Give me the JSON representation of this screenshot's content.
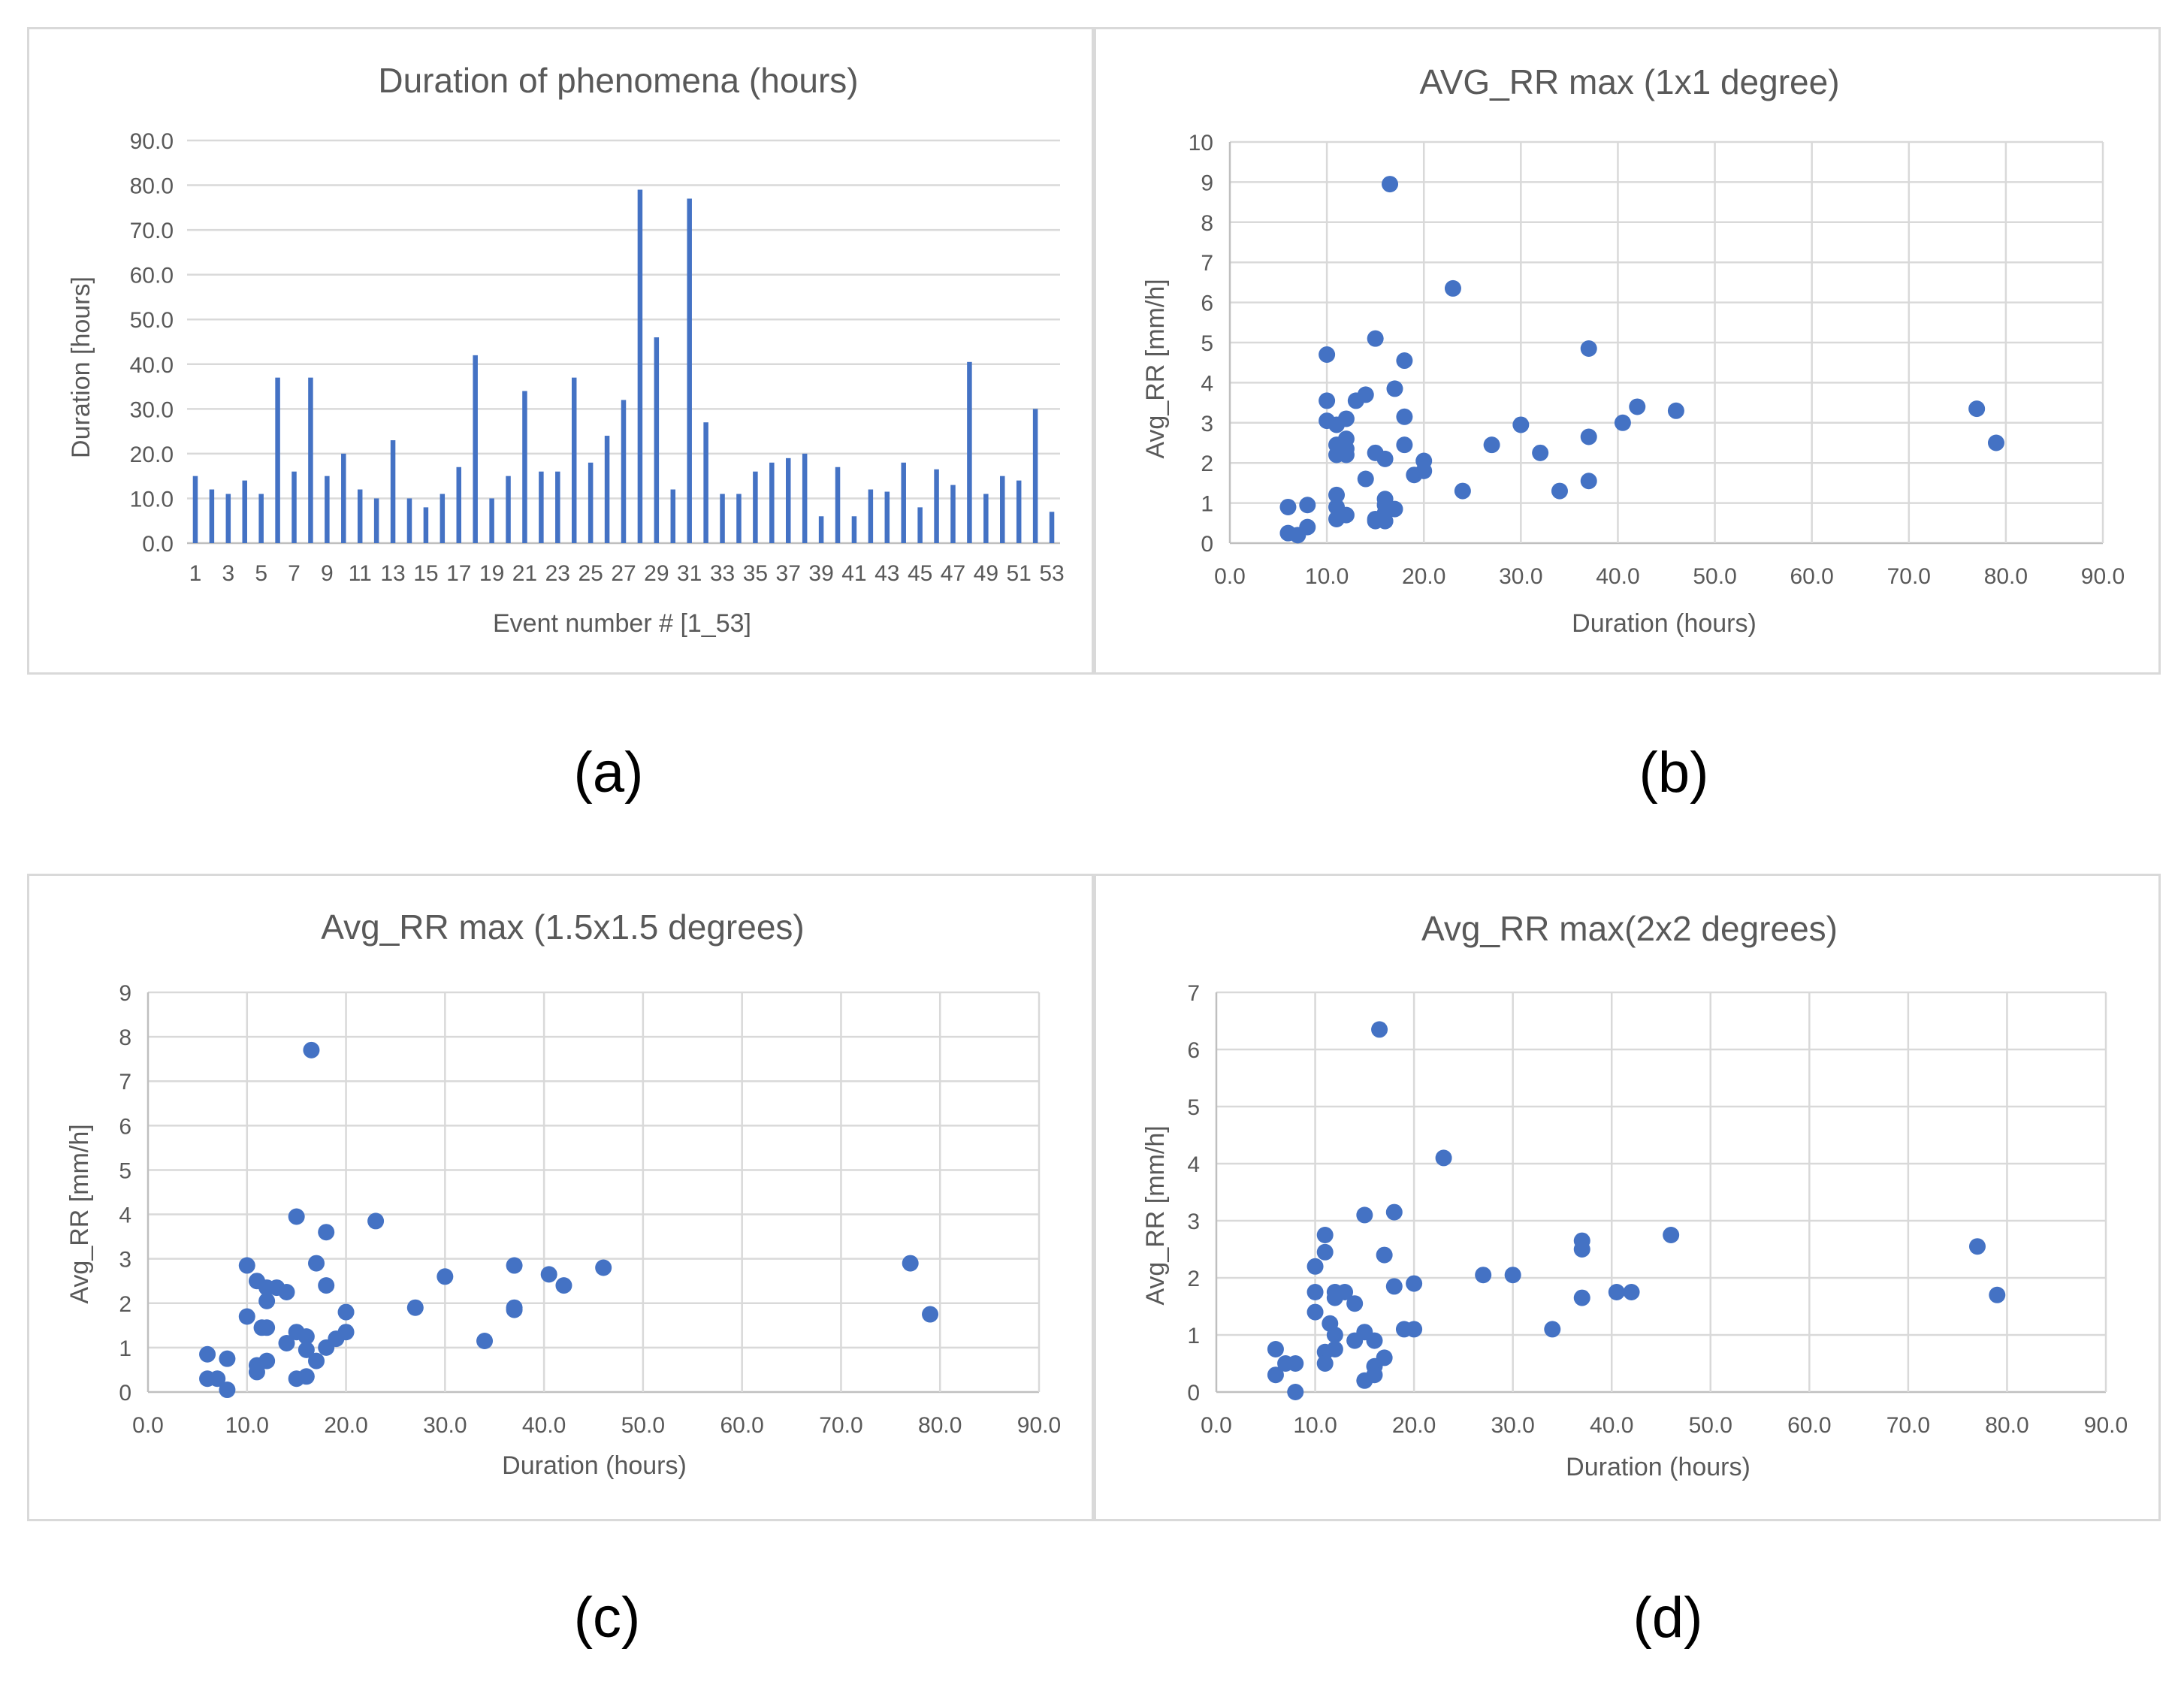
{
  "colors": {
    "series": "#4472c4",
    "grid": "#d9d9d9",
    "text": "#595959"
  },
  "captions": [
    "(a)",
    "(b)",
    "(c)",
    "(d)"
  ],
  "chart_data": [
    {
      "id": "a",
      "type": "bar",
      "title": "Duration of phenomena  (hours)",
      "xlabel": "Event number # [1_53]",
      "ylabel": "Duration [hours]",
      "ylim": [
        0,
        90
      ],
      "ystep": 10,
      "ytick_labels": [
        "0.0",
        "10.0",
        "20.0",
        "30.0",
        "40.0",
        "50.0",
        "60.0",
        "70.0",
        "80.0",
        "90.0"
      ],
      "categories": [
        1,
        2,
        3,
        4,
        5,
        6,
        7,
        8,
        9,
        10,
        11,
        12,
        13,
        14,
        15,
        16,
        17,
        18,
        19,
        20,
        21,
        22,
        23,
        24,
        25,
        26,
        27,
        28,
        29,
        30,
        31,
        32,
        33,
        34,
        35,
        36,
        37,
        38,
        39,
        40,
        41,
        42,
        43,
        44,
        45,
        46,
        47,
        48,
        49,
        50,
        51,
        52,
        53
      ],
      "xtick_labels": [
        "1",
        "3",
        "5",
        "7",
        "9",
        "11",
        "13",
        "15",
        "17",
        "19",
        "21",
        "23",
        "25",
        "27",
        "29",
        "31",
        "33",
        "35",
        "37",
        "39",
        "41",
        "43",
        "45",
        "47",
        "49",
        "51",
        "53"
      ],
      "values": [
        15,
        12,
        11,
        14,
        11,
        37,
        16,
        37,
        15,
        20,
        12,
        10,
        23,
        10,
        8,
        11,
        17,
        42,
        10,
        15,
        34,
        16,
        16,
        37,
        18,
        24,
        32,
        79,
        46,
        12,
        77,
        27,
        11,
        11,
        16,
        18,
        19,
        20,
        6,
        17,
        6,
        12,
        11.5,
        18,
        8,
        16.5,
        13,
        40.5,
        11,
        15,
        14,
        30,
        7
      ]
    },
    {
      "id": "b",
      "type": "scatter",
      "title": "AVG_RR max (1x1 degree)",
      "xlabel": "Duration (hours)",
      "ylabel": "Avg_RR [mm/h]",
      "xlim": [
        0,
        90
      ],
      "xstep": 10,
      "xtick_labels": [
        "0.0",
        "10.0",
        "20.0",
        "30.0",
        "40.0",
        "50.0",
        "60.0",
        "70.0",
        "80.0",
        "90.0"
      ],
      "ylim": [
        0,
        10
      ],
      "ystep": 1,
      "ytick_labels": [
        "0",
        "1",
        "2",
        "3",
        "4",
        "5",
        "6",
        "7",
        "8",
        "9",
        "10"
      ],
      "points": [
        [
          6,
          0.9
        ],
        [
          6,
          0.25
        ],
        [
          7,
          0.2
        ],
        [
          8,
          0.4
        ],
        [
          8,
          0.95
        ],
        [
          10,
          4.7
        ],
        [
          10,
          3.55
        ],
        [
          10,
          3.05
        ],
        [
          11,
          2.95
        ],
        [
          11,
          2.45
        ],
        [
          11,
          2.2
        ],
        [
          11,
          1.2
        ],
        [
          11,
          0.9
        ],
        [
          11,
          0.6
        ],
        [
          12,
          3.1
        ],
        [
          12,
          2.6
        ],
        [
          12,
          2.35
        ],
        [
          12,
          2.2
        ],
        [
          12,
          0.7
        ],
        [
          13,
          3.55
        ],
        [
          14,
          3.7
        ],
        [
          14,
          1.6
        ],
        [
          15,
          5.1
        ],
        [
          15,
          2.25
        ],
        [
          15,
          0.6
        ],
        [
          15,
          0.55
        ],
        [
          16,
          2.1
        ],
        [
          16,
          1.1
        ],
        [
          16,
          0.95
        ],
        [
          16,
          0.75
        ],
        [
          16,
          0.55
        ],
        [
          16.5,
          8.95
        ],
        [
          17,
          3.85
        ],
        [
          17,
          0.85
        ],
        [
          18,
          4.55
        ],
        [
          18,
          3.15
        ],
        [
          18,
          2.45
        ],
        [
          19,
          1.7
        ],
        [
          20,
          2.05
        ],
        [
          20,
          1.8
        ],
        [
          23,
          6.35
        ],
        [
          24,
          1.3
        ],
        [
          27,
          2.45
        ],
        [
          30,
          2.95
        ],
        [
          32,
          2.25
        ],
        [
          34,
          1.3
        ],
        [
          37,
          4.85
        ],
        [
          37,
          2.65
        ],
        [
          37,
          1.55
        ],
        [
          40.5,
          3.0
        ],
        [
          42,
          3.4
        ],
        [
          46,
          3.3
        ],
        [
          77,
          3.35
        ],
        [
          79,
          2.5
        ]
      ]
    },
    {
      "id": "c",
      "type": "scatter",
      "title": "Avg_RR max (1.5x1.5 degrees)",
      "xlabel": "Duration (hours)",
      "ylabel": "Avg_RR [mm/h]",
      "xlim": [
        0,
        90
      ],
      "xstep": 10,
      "xtick_labels": [
        "0.0",
        "10.0",
        "20.0",
        "30.0",
        "40.0",
        "50.0",
        "60.0",
        "70.0",
        "80.0",
        "90.0"
      ],
      "ylim": [
        0,
        9
      ],
      "ystep": 1,
      "ytick_labels": [
        "0",
        "1",
        "2",
        "3",
        "4",
        "5",
        "6",
        "7",
        "8",
        "9"
      ],
      "points": [
        [
          6,
          0.85
        ],
        [
          6,
          0.3
        ],
        [
          7,
          0.3
        ],
        [
          8,
          0.75
        ],
        [
          8,
          0.05
        ],
        [
          10,
          2.85
        ],
        [
          10,
          1.7
        ],
        [
          11,
          2.5
        ],
        [
          11,
          0.6
        ],
        [
          11,
          0.45
        ],
        [
          11.5,
          1.45
        ],
        [
          12,
          2.35
        ],
        [
          12,
          2.05
        ],
        [
          12,
          1.45
        ],
        [
          12,
          0.7
        ],
        [
          13,
          2.35
        ],
        [
          14,
          2.25
        ],
        [
          14,
          1.1
        ],
        [
          15,
          3.95
        ],
        [
          15,
          1.35
        ],
        [
          15,
          0.3
        ],
        [
          16,
          1.25
        ],
        [
          16,
          0.95
        ],
        [
          16,
          0.35
        ],
        [
          16.5,
          7.7
        ],
        [
          17,
          2.9
        ],
        [
          17,
          0.7
        ],
        [
          18,
          3.6
        ],
        [
          18,
          2.4
        ],
        [
          18,
          1.0
        ],
        [
          19,
          1.2
        ],
        [
          20,
          1.8
        ],
        [
          20,
          1.35
        ],
        [
          23,
          3.85
        ],
        [
          27,
          1.9
        ],
        [
          30,
          2.6
        ],
        [
          34,
          1.15
        ],
        [
          37,
          2.85
        ],
        [
          37,
          1.9
        ],
        [
          37,
          1.85
        ],
        [
          40.5,
          2.65
        ],
        [
          42,
          2.4
        ],
        [
          46,
          2.8
        ],
        [
          77,
          2.9
        ],
        [
          79,
          1.75
        ]
      ]
    },
    {
      "id": "d",
      "type": "scatter",
      "title": "Avg_RR max(2x2 degrees)",
      "xlabel": "Duration (hours)",
      "ylabel": "Avg_RR [mm/h]",
      "xlim": [
        0,
        90
      ],
      "xstep": 10,
      "xtick_labels": [
        "0.0",
        "10.0",
        "20.0",
        "30.0",
        "40.0",
        "50.0",
        "60.0",
        "70.0",
        "80.0",
        "90.0"
      ],
      "ylim": [
        0,
        7
      ],
      "ystep": 1,
      "ytick_labels": [
        "0",
        "1",
        "2",
        "3",
        "4",
        "5",
        "6",
        "7"
      ],
      "points": [
        [
          6,
          0.75
        ],
        [
          6,
          0.3
        ],
        [
          7,
          0.5
        ],
        [
          8,
          0.5
        ],
        [
          8,
          0.0
        ],
        [
          10,
          2.2
        ],
        [
          10,
          1.75
        ],
        [
          10,
          1.4
        ],
        [
          11,
          2.75
        ],
        [
          11,
          2.45
        ],
        [
          11,
          0.7
        ],
        [
          11,
          0.5
        ],
        [
          11.5,
          1.2
        ],
        [
          12,
          1.75
        ],
        [
          12,
          1.65
        ],
        [
          12,
          1.0
        ],
        [
          12,
          0.75
        ],
        [
          13,
          1.75
        ],
        [
          14,
          1.55
        ],
        [
          14,
          0.9
        ],
        [
          15,
          3.1
        ],
        [
          15,
          1.05
        ],
        [
          15,
          0.2
        ],
        [
          16,
          0.9
        ],
        [
          16,
          0.45
        ],
        [
          16,
          0.3
        ],
        [
          16.5,
          6.35
        ],
        [
          17,
          2.4
        ],
        [
          17,
          0.6
        ],
        [
          18,
          3.15
        ],
        [
          18,
          1.85
        ],
        [
          19,
          1.1
        ],
        [
          20,
          1.9
        ],
        [
          20,
          1.1
        ],
        [
          23,
          4.1
        ],
        [
          27,
          2.05
        ],
        [
          30,
          2.05
        ],
        [
          34,
          1.1
        ],
        [
          37,
          2.65
        ],
        [
          37,
          2.5
        ],
        [
          37,
          1.65
        ],
        [
          40.5,
          1.75
        ],
        [
          42,
          1.75
        ],
        [
          46,
          2.75
        ],
        [
          77,
          2.55
        ],
        [
          79,
          1.7
        ]
      ]
    }
  ]
}
